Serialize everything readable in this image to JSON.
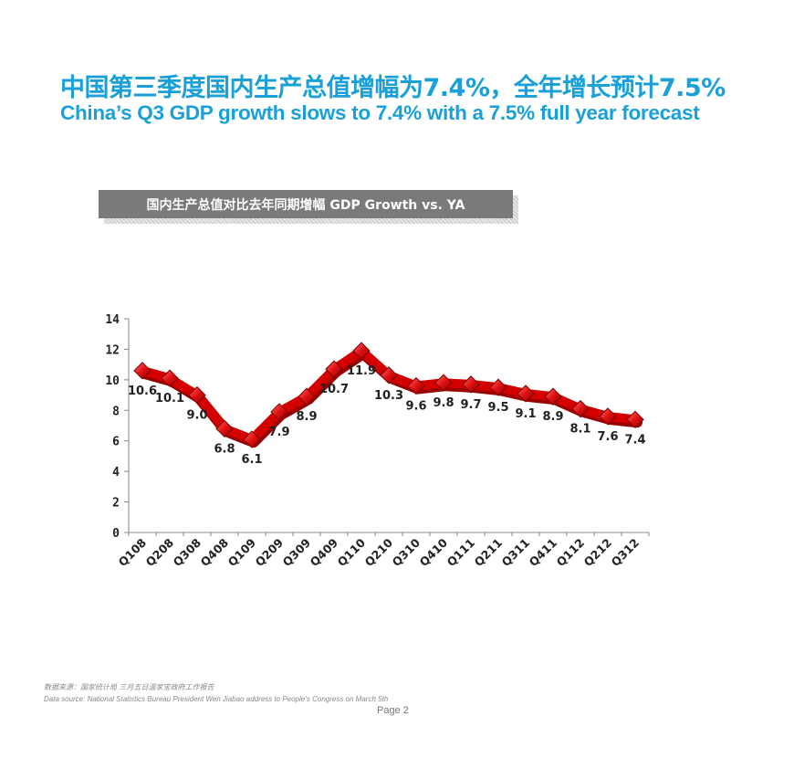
{
  "slide": {
    "title_cn": "中国第三季度国内生产总值增幅为7.4%，全年增长预计7.5%",
    "title_en": "China’s Q3 GDP growth slows to 7.4% with a 7.5% full year forecast",
    "source_cn": "数据来源：国家统计局 三月五日温家宝政府工作报告",
    "source_en": "Data source: National Statistics Bureau President Wen Jiabao address to People’s Congress on March 5th",
    "page": "Page 2"
  },
  "chart_data": {
    "type": "line",
    "title": "国内生产总值对比去年同期增幅 GDP Growth vs. YA",
    "categories": [
      "Q108",
      "Q208",
      "Q308",
      "Q408",
      "Q109",
      "Q209",
      "Q309",
      "Q409",
      "Q110",
      "Q210",
      "Q310",
      "Q410",
      "Q111",
      "Q211",
      "Q311",
      "Q411",
      "Q112",
      "Q212",
      "Q312"
    ],
    "values": [
      10.6,
      10.1,
      9.0,
      6.8,
      6.1,
      7.9,
      8.9,
      10.7,
      11.9,
      10.3,
      9.6,
      9.8,
      9.7,
      9.5,
      9.1,
      8.9,
      8.1,
      7.6,
      7.4
    ],
    "y_ticks": [
      0,
      2,
      4,
      6,
      8,
      10,
      12,
      14
    ],
    "ylim": [
      0,
      14
    ],
    "xlabel": "",
    "ylabel": "",
    "grid": false,
    "legend": "none",
    "colors": {
      "line": "#d40000",
      "line_dark": "#990000",
      "marker": "#e01010",
      "axis": "#888888",
      "title_blue": "#1aa0d8",
      "banner": "#7a7a7a"
    }
  }
}
